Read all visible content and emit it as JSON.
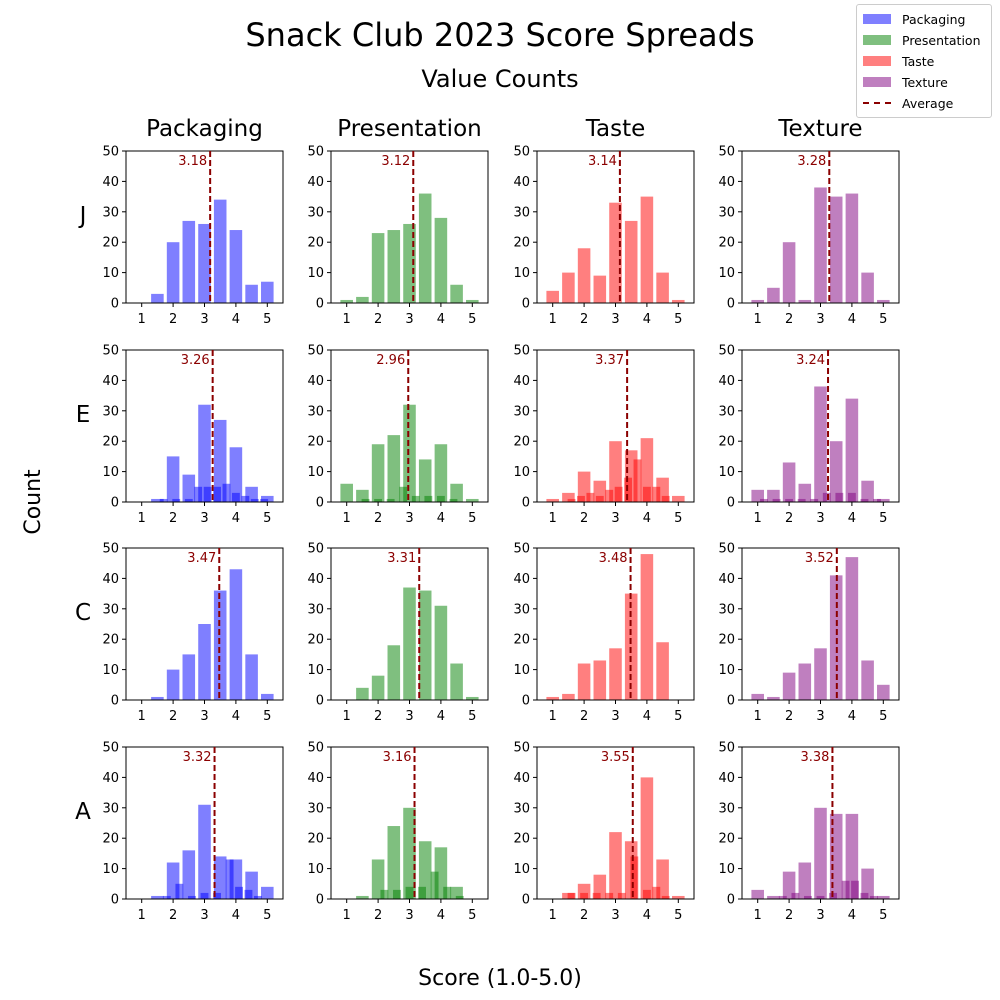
{
  "title": "Snack Club 2023 Score Spreads",
  "subtitle": "Value Counts",
  "xlabel": "Score (1.0-5.0)",
  "ylabel": "Count",
  "legend": [
    {
      "label": "Packaging",
      "color": "#7f7fff"
    },
    {
      "label": "Presentation",
      "color": "#7fbf7f"
    },
    {
      "label": "Taste",
      "color": "#ff7f7f"
    },
    {
      "label": "Texture",
      "color": "#bf7fbf"
    },
    {
      "label": "Average",
      "color": "#8b0000"
    }
  ],
  "chart_data": {
    "type": "bar",
    "columns": [
      "Packaging",
      "Presentation",
      "Taste",
      "Texture"
    ],
    "rows": [
      "J",
      "E",
      "C",
      "A"
    ],
    "column_colors": [
      "#7f7fff",
      "#7fbf7f",
      "#ff7f7f",
      "#bf7fbf"
    ],
    "overlay_colors": [
      "#0000ff",
      "#008000",
      "#ff0000",
      "#800080"
    ],
    "x_ticks": [
      1,
      2,
      3,
      4,
      5
    ],
    "y_ticks": [
      0,
      10,
      20,
      30,
      40,
      50
    ],
    "xlim": [
      0.5,
      5.5
    ],
    "ylim": [
      0,
      50
    ],
    "grid": false,
    "legend_position": "top-right",
    "panels": [
      {
        "row": "J",
        "column": "Packaging",
        "average": 3.18,
        "bins": [
          {
            "x": 1.5,
            "count": 3
          },
          {
            "x": 2.0,
            "count": 20
          },
          {
            "x": 2.5,
            "count": 27
          },
          {
            "x": 3.0,
            "count": 26
          },
          {
            "x": 3.5,
            "count": 34
          },
          {
            "x": 4.0,
            "count": 24
          },
          {
            "x": 4.5,
            "count": 6
          },
          {
            "x": 5.0,
            "count": 7
          }
        ],
        "overlay": []
      },
      {
        "row": "J",
        "column": "Presentation",
        "average": 3.12,
        "bins": [
          {
            "x": 1.0,
            "count": 1
          },
          {
            "x": 1.5,
            "count": 2
          },
          {
            "x": 2.0,
            "count": 23
          },
          {
            "x": 2.5,
            "count": 24
          },
          {
            "x": 3.0,
            "count": 26
          },
          {
            "x": 3.5,
            "count": 36
          },
          {
            "x": 4.0,
            "count": 28
          },
          {
            "x": 4.5,
            "count": 6
          },
          {
            "x": 5.0,
            "count": 1
          }
        ],
        "overlay": []
      },
      {
        "row": "J",
        "column": "Taste",
        "average": 3.14,
        "bins": [
          {
            "x": 1.0,
            "count": 4
          },
          {
            "x": 1.5,
            "count": 10
          },
          {
            "x": 2.0,
            "count": 18
          },
          {
            "x": 2.5,
            "count": 9
          },
          {
            "x": 3.0,
            "count": 33
          },
          {
            "x": 3.5,
            "count": 27
          },
          {
            "x": 4.0,
            "count": 35
          },
          {
            "x": 4.5,
            "count": 10
          },
          {
            "x": 5.0,
            "count": 1
          }
        ],
        "overlay": []
      },
      {
        "row": "J",
        "column": "Texture",
        "average": 3.28,
        "bins": [
          {
            "x": 1.0,
            "count": 1
          },
          {
            "x": 1.5,
            "count": 5
          },
          {
            "x": 2.0,
            "count": 20
          },
          {
            "x": 2.5,
            "count": 1
          },
          {
            "x": 3.0,
            "count": 38
          },
          {
            "x": 3.5,
            "count": 35
          },
          {
            "x": 4.0,
            "count": 36
          },
          {
            "x": 4.5,
            "count": 10
          },
          {
            "x": 5.0,
            "count": 1
          }
        ],
        "overlay": []
      },
      {
        "row": "E",
        "column": "Packaging",
        "average": 3.26,
        "bins": [
          {
            "x": 1.5,
            "count": 1
          },
          {
            "x": 2.0,
            "count": 15
          },
          {
            "x": 2.5,
            "count": 9
          },
          {
            "x": 3.0,
            "count": 32
          },
          {
            "x": 3.5,
            "count": 27
          },
          {
            "x": 4.0,
            "count": 18
          },
          {
            "x": 4.5,
            "count": 5
          },
          {
            "x": 5.0,
            "count": 2
          }
        ],
        "overlay": [
          {
            "x": 1.7,
            "count": 1
          },
          {
            "x": 2.1,
            "count": 1
          },
          {
            "x": 2.5,
            "count": 1
          },
          {
            "x": 2.8,
            "count": 5
          },
          {
            "x": 3.1,
            "count": 5
          },
          {
            "x": 3.4,
            "count": 5
          },
          {
            "x": 3.7,
            "count": 6
          },
          {
            "x": 4.0,
            "count": 3
          },
          {
            "x": 4.3,
            "count": 2
          },
          {
            "x": 4.6,
            "count": 1
          },
          {
            "x": 4.9,
            "count": 1
          }
        ]
      },
      {
        "row": "E",
        "column": "Presentation",
        "average": 2.96,
        "bins": [
          {
            "x": 1.0,
            "count": 6
          },
          {
            "x": 1.5,
            "count": 4
          },
          {
            "x": 2.0,
            "count": 19
          },
          {
            "x": 2.5,
            "count": 22
          },
          {
            "x": 3.0,
            "count": 32
          },
          {
            "x": 3.5,
            "count": 14
          },
          {
            "x": 4.0,
            "count": 19
          },
          {
            "x": 4.5,
            "count": 6
          },
          {
            "x": 5.0,
            "count": 1
          }
        ],
        "overlay": [
          {
            "x": 1.6,
            "count": 1
          },
          {
            "x": 2.0,
            "count": 1
          },
          {
            "x": 2.4,
            "count": 1
          },
          {
            "x": 2.8,
            "count": 5
          },
          {
            "x": 3.2,
            "count": 2
          },
          {
            "x": 3.6,
            "count": 2
          },
          {
            "x": 4.0,
            "count": 2
          },
          {
            "x": 4.4,
            "count": 1
          }
        ]
      },
      {
        "row": "E",
        "column": "Taste",
        "average": 3.37,
        "bins": [
          {
            "x": 1.0,
            "count": 1
          },
          {
            "x": 1.5,
            "count": 3
          },
          {
            "x": 2.0,
            "count": 10
          },
          {
            "x": 2.5,
            "count": 7
          },
          {
            "x": 3.0,
            "count": 20
          },
          {
            "x": 3.5,
            "count": 17
          },
          {
            "x": 4.0,
            "count": 21
          },
          {
            "x": 4.5,
            "count": 8
          },
          {
            "x": 5.0,
            "count": 2
          }
        ],
        "overlay": [
          {
            "x": 1.6,
            "count": 1
          },
          {
            "x": 1.9,
            "count": 2
          },
          {
            "x": 2.2,
            "count": 3
          },
          {
            "x": 2.5,
            "count": 2
          },
          {
            "x": 2.8,
            "count": 4
          },
          {
            "x": 3.1,
            "count": 5
          },
          {
            "x": 3.4,
            "count": 8
          },
          {
            "x": 3.7,
            "count": 14
          },
          {
            "x": 4.0,
            "count": 5
          },
          {
            "x": 4.3,
            "count": 5
          },
          {
            "x": 4.6,
            "count": 2
          }
        ]
      },
      {
        "row": "E",
        "column": "Texture",
        "average": 3.24,
        "bins": [
          {
            "x": 1.0,
            "count": 4
          },
          {
            "x": 1.5,
            "count": 4
          },
          {
            "x": 2.0,
            "count": 13
          },
          {
            "x": 2.5,
            "count": 6
          },
          {
            "x": 3.0,
            "count": 38
          },
          {
            "x": 3.5,
            "count": 20
          },
          {
            "x": 4.0,
            "count": 34
          },
          {
            "x": 4.5,
            "count": 7
          },
          {
            "x": 5.0,
            "count": 1
          }
        ],
        "overlay": [
          {
            "x": 1.2,
            "count": 1
          },
          {
            "x": 1.6,
            "count": 1
          },
          {
            "x": 2.0,
            "count": 1
          },
          {
            "x": 2.4,
            "count": 1
          },
          {
            "x": 2.8,
            "count": 1
          },
          {
            "x": 3.2,
            "count": 3
          },
          {
            "x": 3.6,
            "count": 3
          },
          {
            "x": 4.0,
            "count": 3
          },
          {
            "x": 4.4,
            "count": 1
          },
          {
            "x": 4.8,
            "count": 1
          }
        ]
      },
      {
        "row": "C",
        "column": "Packaging",
        "average": 3.47,
        "bins": [
          {
            "x": 1.5,
            "count": 1
          },
          {
            "x": 2.0,
            "count": 10
          },
          {
            "x": 2.5,
            "count": 15
          },
          {
            "x": 3.0,
            "count": 25
          },
          {
            "x": 3.5,
            "count": 36
          },
          {
            "x": 4.0,
            "count": 43
          },
          {
            "x": 4.5,
            "count": 15
          },
          {
            "x": 5.0,
            "count": 2
          }
        ],
        "overlay": []
      },
      {
        "row": "C",
        "column": "Presentation",
        "average": 3.31,
        "bins": [
          {
            "x": 1.5,
            "count": 4
          },
          {
            "x": 2.0,
            "count": 8
          },
          {
            "x": 2.5,
            "count": 18
          },
          {
            "x": 3.0,
            "count": 37
          },
          {
            "x": 3.5,
            "count": 36
          },
          {
            "x": 4.0,
            "count": 31
          },
          {
            "x": 4.5,
            "count": 12
          },
          {
            "x": 5.0,
            "count": 1
          }
        ],
        "overlay": []
      },
      {
        "row": "C",
        "column": "Taste",
        "average": 3.48,
        "bins": [
          {
            "x": 1.0,
            "count": 1
          },
          {
            "x": 1.5,
            "count": 2
          },
          {
            "x": 2.0,
            "count": 12
          },
          {
            "x": 2.5,
            "count": 13
          },
          {
            "x": 3.0,
            "count": 17
          },
          {
            "x": 3.5,
            "count": 35
          },
          {
            "x": 4.0,
            "count": 48
          },
          {
            "x": 4.5,
            "count": 19
          }
        ],
        "overlay": []
      },
      {
        "row": "C",
        "column": "Texture",
        "average": 3.52,
        "bins": [
          {
            "x": 1.0,
            "count": 2
          },
          {
            "x": 1.5,
            "count": 1
          },
          {
            "x": 2.0,
            "count": 9
          },
          {
            "x": 2.5,
            "count": 12
          },
          {
            "x": 3.0,
            "count": 17
          },
          {
            "x": 3.5,
            "count": 41
          },
          {
            "x": 4.0,
            "count": 47
          },
          {
            "x": 4.5,
            "count": 13
          },
          {
            "x": 5.0,
            "count": 5
          }
        ],
        "overlay": []
      },
      {
        "row": "A",
        "column": "Packaging",
        "average": 3.32,
        "bins": [
          {
            "x": 1.5,
            "count": 1
          },
          {
            "x": 2.0,
            "count": 12
          },
          {
            "x": 2.5,
            "count": 16
          },
          {
            "x": 3.0,
            "count": 31
          },
          {
            "x": 3.5,
            "count": 14
          },
          {
            "x": 4.0,
            "count": 13
          },
          {
            "x": 4.5,
            "count": 9
          },
          {
            "x": 5.0,
            "count": 4
          }
        ],
        "overlay": [
          {
            "x": 1.8,
            "count": 1
          },
          {
            "x": 2.2,
            "count": 5
          },
          {
            "x": 2.6,
            "count": 1
          },
          {
            "x": 3.0,
            "count": 2
          },
          {
            "x": 3.4,
            "count": 2
          },
          {
            "x": 3.8,
            "count": 13
          },
          {
            "x": 4.1,
            "count": 4
          },
          {
            "x": 4.4,
            "count": 3
          },
          {
            "x": 4.7,
            "count": 1
          }
        ]
      },
      {
        "row": "A",
        "column": "Presentation",
        "average": 3.16,
        "bins": [
          {
            "x": 1.5,
            "count": 1
          },
          {
            "x": 2.0,
            "count": 13
          },
          {
            "x": 2.5,
            "count": 24
          },
          {
            "x": 3.0,
            "count": 30
          },
          {
            "x": 3.5,
            "count": 19
          },
          {
            "x": 4.0,
            "count": 17
          },
          {
            "x": 4.5,
            "count": 4
          }
        ],
        "overlay": [
          {
            "x": 2.2,
            "count": 3
          },
          {
            "x": 2.6,
            "count": 3
          },
          {
            "x": 3.0,
            "count": 4
          },
          {
            "x": 3.4,
            "count": 4
          },
          {
            "x": 3.8,
            "count": 9
          },
          {
            "x": 4.2,
            "count": 4
          },
          {
            "x": 4.6,
            "count": 1
          }
        ]
      },
      {
        "row": "A",
        "column": "Taste",
        "average": 3.55,
        "bins": [
          {
            "x": 1.5,
            "count": 2
          },
          {
            "x": 2.0,
            "count": 5
          },
          {
            "x": 2.5,
            "count": 8
          },
          {
            "x": 3.0,
            "count": 22
          },
          {
            "x": 3.5,
            "count": 19
          },
          {
            "x": 4.0,
            "count": 40
          },
          {
            "x": 4.5,
            "count": 13
          },
          {
            "x": 5.0,
            "count": 1
          }
        ],
        "overlay": [
          {
            "x": 1.6,
            "count": 2
          },
          {
            "x": 2.0,
            "count": 2
          },
          {
            "x": 2.4,
            "count": 2
          },
          {
            "x": 2.8,
            "count": 2
          },
          {
            "x": 3.2,
            "count": 2
          },
          {
            "x": 3.6,
            "count": 14
          },
          {
            "x": 4.0,
            "count": 3
          },
          {
            "x": 4.3,
            "count": 4
          },
          {
            "x": 4.6,
            "count": 1
          }
        ]
      },
      {
        "row": "A",
        "column": "Texture",
        "average": 3.38,
        "bins": [
          {
            "x": 1.0,
            "count": 3
          },
          {
            "x": 1.5,
            "count": 1
          },
          {
            "x": 2.0,
            "count": 9
          },
          {
            "x": 2.5,
            "count": 12
          },
          {
            "x": 3.0,
            "count": 30
          },
          {
            "x": 3.5,
            "count": 28
          },
          {
            "x": 4.0,
            "count": 28
          },
          {
            "x": 4.5,
            "count": 10
          },
          {
            "x": 5.0,
            "count": 1
          }
        ],
        "overlay": [
          {
            "x": 1.8,
            "count": 1
          },
          {
            "x": 2.2,
            "count": 2
          },
          {
            "x": 2.6,
            "count": 1
          },
          {
            "x": 3.0,
            "count": 1
          },
          {
            "x": 3.4,
            "count": 2
          },
          {
            "x": 3.8,
            "count": 6
          },
          {
            "x": 4.1,
            "count": 6
          },
          {
            "x": 4.4,
            "count": 2
          },
          {
            "x": 4.7,
            "count": 1
          }
        ]
      }
    ]
  }
}
